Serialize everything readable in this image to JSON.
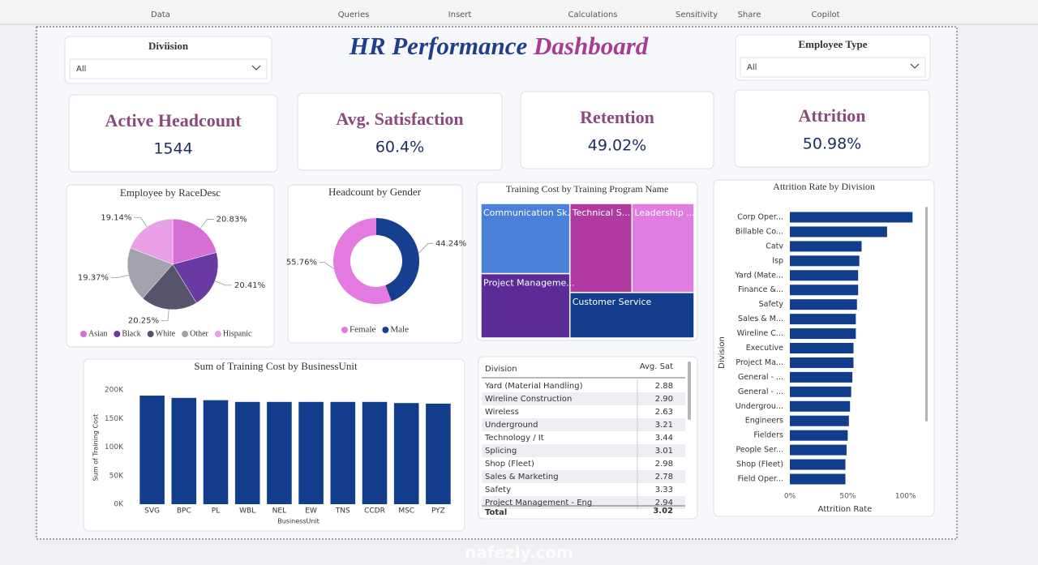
{
  "ribbon": {
    "groups": [
      "Data",
      "Queries",
      "Insert",
      "Calculations",
      "Sensitivity",
      "Share",
      "Copilot"
    ]
  },
  "header": {
    "title": "HR Performance",
    "title_accent": "Dashboard"
  },
  "slicers": [
    {
      "label": "Diviision",
      "value": "All"
    },
    {
      "label": "Employee Type",
      "value": "All"
    }
  ],
  "kpis": [
    {
      "label": "Active Headcount",
      "value": "1544"
    },
    {
      "label": "Avg. Satisfaction",
      "value": "60.4%"
    },
    {
      "label": "Retention",
      "value": "49.02%"
    },
    {
      "label": "Attrition",
      "value": "50.98%"
    }
  ],
  "chart_data": [
    {
      "type": "pie",
      "title": "Employee by RaceDesc",
      "categories": [
        "Asian",
        "Black",
        "White",
        "Other",
        "Hispanic"
      ],
      "values": [
        20.83,
        20.41,
        20.25,
        19.37,
        19.14
      ],
      "value_labels": [
        "20.83%",
        "20.41%",
        "20.25%",
        "19.37%",
        "19.14%"
      ],
      "colors": [
        "#d66fd3",
        "#6a3aa3",
        "#55546a",
        "#a3a3ad",
        "#e9a0e6"
      ]
    },
    {
      "type": "donut",
      "title": "Headcount by Gender",
      "categories": [
        "Female",
        "Male"
      ],
      "values": [
        55.76,
        44.24
      ],
      "value_labels": [
        "55.76%",
        "44.24%"
      ],
      "colors": [
        "#e37be0",
        "#163f8f"
      ]
    },
    {
      "type": "treemap",
      "title": "Training Cost by Training Program Name",
      "categories": [
        "Communication Sk...",
        "Technical S...",
        "Leadership ...",
        "Project Manageme...",
        "Customer Service"
      ],
      "values": [
        9.6,
        8.5,
        8.5,
        8.8,
        8.7
      ],
      "colors": [
        "#4a80d8",
        "#b13aa2",
        "#df7de0",
        "#5b2b96",
        "#133d8c"
      ]
    },
    {
      "type": "bar",
      "title": "Sum of Training Cost by BusinessUnit",
      "xlabel": "BusinessUnit",
      "ylabel": "Sum of Training Cost",
      "categories": [
        "SVG",
        "BPC",
        "PL",
        "WBL",
        "NEL",
        "EW",
        "TNS",
        "CCDR",
        "MSC",
        "PYZ"
      ],
      "values": [
        190000,
        186000,
        182000,
        179000,
        179000,
        179000,
        179000,
        179000,
        177000,
        176000
      ],
      "ylim": [
        0,
        200000
      ],
      "yticks": [
        {
          "value": 0,
          "label": "0K"
        },
        {
          "value": 50000,
          "label": "50K"
        },
        {
          "value": 100000,
          "label": "100K"
        },
        {
          "value": 150000,
          "label": "150K"
        },
        {
          "value": 200000,
          "label": "200K"
        }
      ],
      "color": "#123c8c"
    },
    {
      "type": "hbar",
      "title": "Attrition Rate by Division",
      "xlabel": "Attrition Rate",
      "ylabel": "Division",
      "categories": [
        "Corp Oper...",
        "Billable Co...",
        "Catv",
        "Isp",
        "Yard (Mate...",
        "Finance &...",
        "Safety",
        "Sales & M...",
        "Wireline C...",
        "Executive",
        "Project Ma...",
        "General - ...",
        "General - ...",
        "Undergrou...",
        "Engineers",
        "Fielders",
        "People Ser...",
        "Shop (Fleet)",
        "Field Oper..."
      ],
      "values": [
        106,
        84,
        62,
        60,
        59,
        59,
        58,
        57,
        57,
        55,
        55,
        54,
        53,
        52,
        51,
        50,
        49,
        48,
        48
      ],
      "xlim": [
        0,
        110
      ],
      "xticks": [
        {
          "value": 0,
          "label": "0%"
        },
        {
          "value": 50,
          "label": "50%"
        },
        {
          "value": 100,
          "label": "100%"
        }
      ],
      "color": "#123c8c"
    }
  ],
  "table": {
    "columns": [
      "Division",
      "Avg. Sat"
    ],
    "rows": [
      [
        "Yard (Material Handling)",
        "2.88"
      ],
      [
        "Wireline Construction",
        "2.90"
      ],
      [
        "Wireless",
        "2.63"
      ],
      [
        "Underground",
        "3.21"
      ],
      [
        "Technology / It",
        "3.44"
      ],
      [
        "Splicing",
        "3.01"
      ],
      [
        "Shop (Fleet)",
        "2.98"
      ],
      [
        "Sales & Marketing",
        "2.78"
      ],
      [
        "Safety",
        "3.33"
      ],
      [
        "Project Management - Eng",
        "2.94"
      ]
    ],
    "total": [
      "Total",
      "3.02"
    ]
  },
  "watermark": "nafezly.com"
}
